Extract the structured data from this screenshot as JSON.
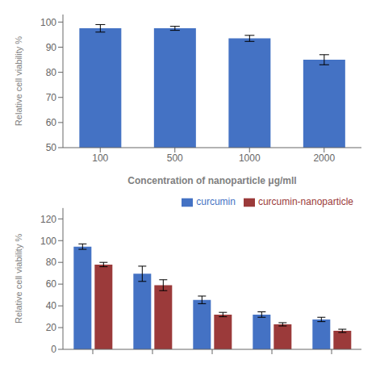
{
  "chart_data": [
    {
      "type": "bar",
      "categories": [
        "100",
        "500",
        "1000",
        "2000"
      ],
      "values": [
        97.5,
        97.5,
        93.5,
        85.0
      ],
      "errors": [
        1.5,
        0.8,
        1.2,
        2.0
      ],
      "color": "#4472C4",
      "ylabel": "Relative cell viability %",
      "xlabel": "Concentration of nanoparticle μg/mll",
      "ylim": [
        50,
        103
      ],
      "yticks": [
        50,
        60,
        70,
        80,
        90,
        100
      ]
    },
    {
      "type": "bar",
      "categories": [
        null,
        null,
        null,
        null,
        null
      ],
      "series": [
        {
          "name": "curcumin",
          "color": "#4472C4",
          "values": [
            94.5,
            69.5,
            45.5,
            32.0,
            27.5
          ],
          "errors": [
            2.5,
            7.0,
            3.5,
            2.5,
            2.0
          ]
        },
        {
          "name": "curcumin-nanoparticle",
          "color": "#9B3A3A",
          "values": [
            78.0,
            59.0,
            32.0,
            23.0,
            17.0
          ],
          "errors": [
            2.0,
            5.0,
            2.0,
            1.5,
            1.5
          ]
        }
      ],
      "ylabel": "Relative cell viability %",
      "ylim": [
        0,
        130
      ],
      "yticks": [
        0,
        20,
        40,
        60,
        80,
        100,
        120
      ],
      "legend": "upper right"
    }
  ]
}
